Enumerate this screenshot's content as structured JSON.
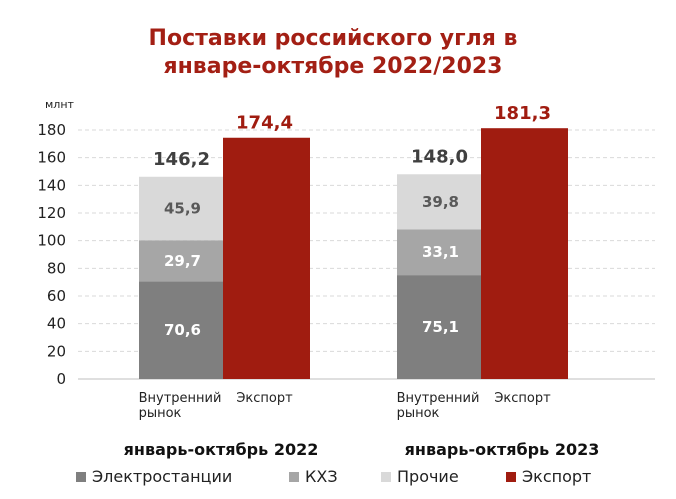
{
  "chart_data": {
    "type": "bar",
    "title_lines": [
      "Поставки российского угля в",
      "январе-октябре 2022/2023"
    ],
    "ylabel": "млнт",
    "ylim": [
      0,
      180
    ],
    "yticks": [
      0,
      20,
      40,
      60,
      80,
      100,
      120,
      140,
      160,
      180
    ],
    "grid": true,
    "legend_position": "bottom",
    "groups": [
      {
        "name": "январь-октябрь 2022",
        "stack_label": "Внутренний рынок",
        "stack_label_lines": [
          "Внутренний",
          "рынок"
        ],
        "stack_total_label": "146,2",
        "segments": [
          {
            "series": "Электростанции",
            "value": 70.6,
            "label": "70,6"
          },
          {
            "series": "КХЗ",
            "value": 29.7,
            "label": "29,7"
          },
          {
            "series": "Прочие",
            "value": 45.9,
            "label": "45,9"
          }
        ],
        "export_label": "Экспорт",
        "export_value": 174.4,
        "export_value_label": "174,4"
      },
      {
        "name": "январь-октябрь 2023",
        "stack_label": "Внутренний рынок",
        "stack_label_lines": [
          "Внутренний",
          "рынок"
        ],
        "stack_total_label": "148,0",
        "segments": [
          {
            "series": "Электростанции",
            "value": 75.1,
            "label": "75,1"
          },
          {
            "series": "КХЗ",
            "value": 33.1,
            "label": "33,1"
          },
          {
            "series": "Прочие",
            "value": 39.8,
            "label": "39,8"
          }
        ],
        "export_label": "Экспорт",
        "export_value": 181.3,
        "export_value_label": "181,3"
      }
    ],
    "series": [
      {
        "name": "Электростанции",
        "color": "#7f7f7f",
        "label_color": "#ffffff"
      },
      {
        "name": "КХЗ",
        "color": "#a6a6a6",
        "label_color": "#ffffff"
      },
      {
        "name": "Прочие",
        "color": "#d9d9d9",
        "label_color": "#595959"
      },
      {
        "name": "Экспорт",
        "color": "#a01c10",
        "label_color": "#a01c10"
      }
    ],
    "total_label_color": "#404040"
  }
}
